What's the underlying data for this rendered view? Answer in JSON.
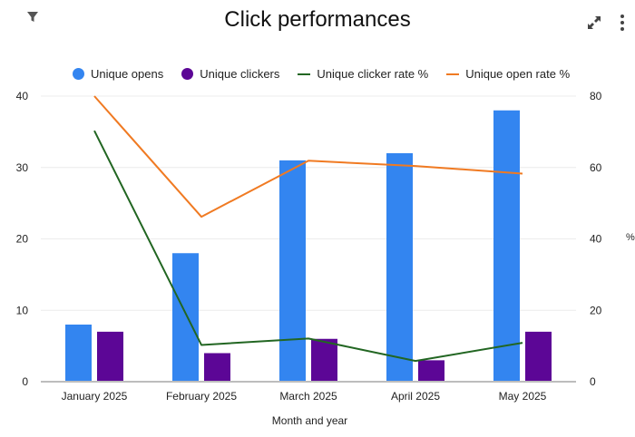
{
  "header": {
    "title": "Click performances",
    "filter_icon": "filter-icon",
    "expand_icon": "expand-icon",
    "more_icon": "more-vertical-icon"
  },
  "chart_data": {
    "type": "bar",
    "title": "Click performances",
    "xlabel": "Month and year",
    "ylabel": "",
    "y2label": "%",
    "categories": [
      "January 2025",
      "February 2025",
      "March 2025",
      "April 2025",
      "May 2025"
    ],
    "ylim": [
      0,
      40
    ],
    "y2lim": [
      0,
      80
    ],
    "yticks": [
      0,
      10,
      20,
      30,
      40
    ],
    "y2ticks": [
      0,
      20,
      40,
      60,
      80
    ],
    "grid": true,
    "legend_position": "top",
    "series": [
      {
        "name": "Unique opens",
        "type": "bar",
        "axis": "left",
        "color": "#3385f0",
        "values": [
          8,
          18,
          31,
          32,
          38
        ]
      },
      {
        "name": "Unique clickers",
        "type": "bar",
        "axis": "left",
        "color": "#5c0696",
        "values": [
          7,
          4,
          6,
          3,
          7
        ]
      },
      {
        "name": "Unique clicker rate %",
        "type": "line",
        "axis": "right",
        "color": "#226622",
        "values": [
          70.3,
          10.3,
          12.1,
          5.8,
          10.9
        ]
      },
      {
        "name": "Unique open rate %",
        "type": "line",
        "axis": "right",
        "color": "#f07a22",
        "values": [
          80.0,
          46.2,
          61.9,
          60.4,
          58.3
        ]
      }
    ]
  }
}
